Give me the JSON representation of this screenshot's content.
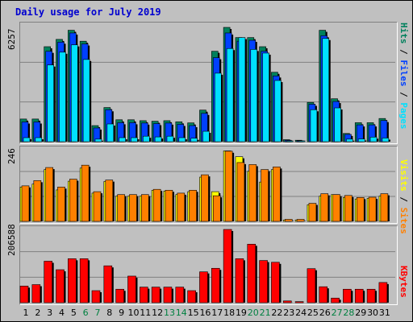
{
  "title": "Daily usage for July 2019",
  "colors": {
    "hits": "#00805c",
    "files": "#0040ff",
    "pages": "#00e0ff",
    "visits": "#ffff00",
    "sites": "#ff8000",
    "kbytes": "#ff0000",
    "weekend_label": "#008040",
    "weekday_label": "#000000"
  },
  "y_max_labels": {
    "top": "6257",
    "mid": "246",
    "bottom": "206588"
  },
  "legend_top": [
    {
      "text": "Hits",
      "color": "#00805c"
    },
    {
      "text": " / ",
      "color": "#000000"
    },
    {
      "text": "Files",
      "color": "#0040ff"
    },
    {
      "text": " / ",
      "color": "#000000"
    },
    {
      "text": "Pages",
      "color": "#00e0ff"
    }
  ],
  "legend_mid": [
    {
      "text": "Visits",
      "color": "#ffff00"
    },
    {
      "text": " / ",
      "color": "#000000"
    },
    {
      "text": "Sites",
      "color": "#ff8000"
    }
  ],
  "legend_bottom": [
    {
      "text": "KBytes",
      "color": "#ff0000"
    }
  ],
  "chart_data": {
    "type": "bar",
    "title": "Daily usage for July 2019",
    "categories": [
      "1",
      "2",
      "3",
      "4",
      "5",
      "6",
      "7",
      "8",
      "9",
      "10",
      "11",
      "12",
      "13",
      "14",
      "15",
      "16",
      "17",
      "18",
      "19",
      "20",
      "21",
      "22",
      "23",
      "24",
      "25",
      "26",
      "27",
      "28",
      "29",
      "30",
      "31"
    ],
    "weekend_days": [
      "6",
      "7",
      "13",
      "14",
      "20",
      "21",
      "27",
      "28"
    ],
    "panels": [
      {
        "name": "hits-files-pages",
        "ymax": 6257,
        "series": [
          {
            "name": "Hits",
            "values": [
              1240,
              1240,
              5200,
              5600,
              6100,
              5500,
              880,
              1870,
              1200,
              1200,
              1150,
              1120,
              1150,
              1090,
              1030,
              1730,
              4950,
              6257,
              5700,
              5700,
              5200,
              3800,
              110,
              80,
              2150,
              6100,
              2350,
              450,
              1040,
              1040,
              1270
            ]
          },
          {
            "name": "Files",
            "values": [
              1080,
              1080,
              4950,
              5450,
              5950,
              5350,
              750,
              1750,
              1040,
              1040,
              1020,
              990,
              1020,
              950,
              880,
              1550,
              4600,
              5950,
              5500,
              5550,
              4950,
              3600,
              80,
              50,
              2050,
              5800,
              2200,
              400,
              920,
              920,
              1160
            ]
          },
          {
            "name": "Pages",
            "values": [
              220,
              220,
              4200,
              4900,
              5300,
              4500,
              140,
              970,
              220,
              220,
              300,
              260,
              300,
              220,
              190,
              570,
              3750,
              5100,
              5700,
              5050,
              4850,
              3350,
              20,
              15,
              1750,
              5650,
              1850,
              140,
              150,
              250,
              200
            ]
          }
        ]
      },
      {
        "name": "visits-sites",
        "ymax": 246,
        "series": [
          {
            "name": "Visits",
            "values": [
              118,
              128,
              178,
              108,
              138,
              183,
              97,
              137,
              87,
              87,
              87,
              107,
              104,
              92,
              102,
              152,
              102,
              242,
              222,
              172,
              135,
              178,
              5,
              5,
              57,
              87,
              92,
              82,
              77,
              79,
              87
            ]
          },
          {
            "name": "Sites",
            "values": [
              122,
              140,
              185,
              118,
              145,
              193,
              102,
              142,
              92,
              92,
              92,
              110,
              107,
              97,
              107,
              160,
              88,
              241,
              202,
              195,
              178,
              187,
              7,
              7,
              62,
              95,
              92,
              89,
              82,
              83,
              95
            ]
          }
        ]
      },
      {
        "name": "kbytes",
        "ymax": 206588,
        "series": [
          {
            "name": "KBytes",
            "values": [
              47000,
              51000,
              117000,
              93000,
              124000,
              124000,
              34000,
              104000,
              38000,
              75000,
              44000,
              44000,
              44000,
              44000,
              34000,
              87000,
              97000,
              206588,
              124000,
              165000,
              119000,
              114000,
              5000,
              3000,
              96000,
              45000,
              13000,
              38000,
              38000,
              38000,
              57000
            ]
          }
        ]
      }
    ]
  }
}
